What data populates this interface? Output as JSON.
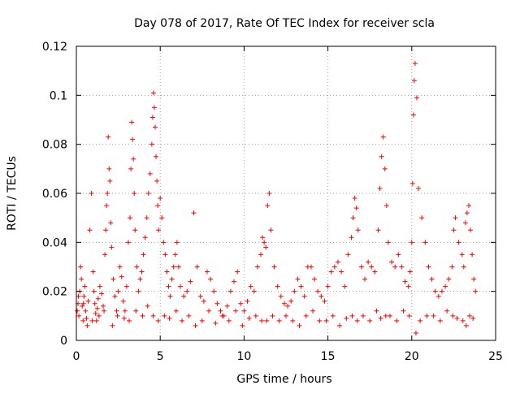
{
  "chart_data": {
    "type": "scatter",
    "title": "Day 078 of 2017, Rate Of TEC Index for receiver scla",
    "xlabel": "GPS time / hours",
    "ylabel": "ROTI / TECUs",
    "xlim": [
      0,
      25
    ],
    "ylim": [
      0,
      0.12
    ],
    "xticks": [
      0,
      5,
      10,
      15,
      20,
      25
    ],
    "xtick_labels": [
      "0",
      "5",
      "10",
      "15",
      "20",
      "25"
    ],
    "yticks": [
      0,
      0.02,
      0.04,
      0.06,
      0.08,
      0.1,
      0.12
    ],
    "ytick_labels": [
      "0",
      "0.02",
      "0.04",
      "0.06",
      "0.08",
      "0.1",
      "0.12"
    ],
    "grid": true,
    "marker": "plus",
    "series": [
      {
        "name": "ROTI",
        "color": "#ff0000",
        "x": [
          0.05,
          0.1,
          0.15,
          0.2,
          0.25,
          0.3,
          0.35,
          0.4,
          0.45,
          0.5,
          0.55,
          0.6,
          0.7,
          0.8,
          0.9,
          1.0,
          1.05,
          1.1,
          1.15,
          1.2,
          1.25,
          1.3,
          1.4,
          1.5,
          1.6,
          1.7,
          1.75,
          1.8,
          1.85,
          1.9,
          1.95,
          2.0,
          2.05,
          2.1,
          2.2,
          2.3,
          2.4,
          2.5,
          2.6,
          2.7,
          2.8,
          2.9,
          3.0,
          3.1,
          3.2,
          3.25,
          3.3,
          3.35,
          3.4,
          3.45,
          3.5,
          3.6,
          3.7,
          3.8,
          3.9,
          4.0,
          4.1,
          4.2,
          4.3,
          4.4,
          4.5,
          4.55,
          4.6,
          4.65,
          4.7,
          4.75,
          4.8,
          4.85,
          4.9,
          5.0,
          5.1,
          5.2,
          5.3,
          5.4,
          5.5,
          5.6,
          5.7,
          5.8,
          5.9,
          6.0,
          6.1,
          6.2,
          6.4,
          6.6,
          6.8,
          7.0,
          7.2,
          7.4,
          7.6,
          7.8,
          8.0,
          8.2,
          8.4,
          8.6,
          8.8,
          9.0,
          9.2,
          9.4,
          9.6,
          9.8,
          10.0,
          10.2,
          10.4,
          10.6,
          10.8,
          11.0,
          11.1,
          11.2,
          11.3,
          11.4,
          11.5,
          11.6,
          11.8,
          12.0,
          12.2,
          12.4,
          12.6,
          12.8,
          13.0,
          13.2,
          13.4,
          13.6,
          13.8,
          14.0,
          14.2,
          14.4,
          14.6,
          14.8,
          15.0,
          15.2,
          15.4,
          15.6,
          15.8,
          16.0,
          16.2,
          16.4,
          16.5,
          16.6,
          16.7,
          16.8,
          17.0,
          17.2,
          17.4,
          17.6,
          17.8,
          18.0,
          18.1,
          18.2,
          18.3,
          18.4,
          18.5,
          18.6,
          18.8,
          19.0,
          19.2,
          19.4,
          19.6,
          19.8,
          19.9,
          20.0,
          20.05,
          20.1,
          20.15,
          20.2,
          20.3,
          20.4,
          20.6,
          20.8,
          21.0,
          21.2,
          21.4,
          21.6,
          21.8,
          22.0,
          22.2,
          22.4,
          22.5,
          22.6,
          22.8,
          23.0,
          23.1,
          23.2,
          23.3,
          23.4,
          23.5,
          23.6,
          23.7,
          23.8,
          0.12,
          0.42,
          0.65,
          0.95,
          1.35,
          1.65,
          2.15,
          2.45,
          2.85,
          3.15,
          3.55,
          3.95,
          4.25,
          4.58,
          4.88,
          5.25,
          5.55,
          5.95,
          6.3,
          6.7,
          7.1,
          7.5,
          7.9,
          8.3,
          8.7,
          9.1,
          9.5,
          9.9,
          10.3,
          10.7,
          11.05,
          11.35,
          11.7,
          12.1,
          12.5,
          12.9,
          13.3,
          13.7,
          14.1,
          14.5,
          14.9,
          15.3,
          15.7,
          16.1,
          16.45,
          16.75,
          17.1,
          17.5,
          17.9,
          18.15,
          18.45,
          18.7,
          19.1,
          19.5,
          19.85,
          20.25,
          20.5,
          20.9,
          21.3,
          21.7,
          22.1,
          22.45,
          22.7,
          23.05,
          23.25,
          23.45,
          23.65
        ],
        "y": [
          0.012,
          0.015,
          0.01,
          0.02,
          0.03,
          0.025,
          0.014,
          0.008,
          0.018,
          0.022,
          0.012,
          0.009,
          0.016,
          0.045,
          0.06,
          0.028,
          0.02,
          0.015,
          0.011,
          0.008,
          0.013,
          0.017,
          0.022,
          0.019,
          0.014,
          0.035,
          0.045,
          0.055,
          0.06,
          0.083,
          0.07,
          0.065,
          0.048,
          0.038,
          0.025,
          0.018,
          0.012,
          0.02,
          0.03,
          0.026,
          0.016,
          0.012,
          0.022,
          0.04,
          0.05,
          0.07,
          0.089,
          0.082,
          0.074,
          0.06,
          0.045,
          0.03,
          0.02,
          0.025,
          0.028,
          0.035,
          0.042,
          0.05,
          0.06,
          0.068,
          0.08,
          0.091,
          0.101,
          0.095,
          0.087,
          0.075,
          0.065,
          0.055,
          0.045,
          0.058,
          0.05,
          0.04,
          0.035,
          0.028,
          0.022,
          0.018,
          0.025,
          0.03,
          0.035,
          0.04,
          0.03,
          0.022,
          0.018,
          0.02,
          0.024,
          0.052,
          0.03,
          0.018,
          0.016,
          0.028,
          0.025,
          0.02,
          0.015,
          0.012,
          0.01,
          0.014,
          0.02,
          0.024,
          0.028,
          0.015,
          0.012,
          0.016,
          0.022,
          0.02,
          0.03,
          0.035,
          0.042,
          0.04,
          0.038,
          0.055,
          0.06,
          0.045,
          0.03,
          0.022,
          0.018,
          0.015,
          0.014,
          0.016,
          0.02,
          0.025,
          0.022,
          0.018,
          0.03,
          0.03,
          0.025,
          0.02,
          0.018,
          0.016,
          0.022,
          0.028,
          0.03,
          0.032,
          0.028,
          0.022,
          0.035,
          0.042,
          0.05,
          0.058,
          0.054,
          0.045,
          0.03,
          0.025,
          0.032,
          0.03,
          0.028,
          0.045,
          0.062,
          0.075,
          0.083,
          0.07,
          0.055,
          0.04,
          0.032,
          0.03,
          0.035,
          0.03,
          0.024,
          0.022,
          0.028,
          0.04,
          0.064,
          0.092,
          0.106,
          0.113,
          0.099,
          0.062,
          0.05,
          0.04,
          0.03,
          0.025,
          0.02,
          0.018,
          0.02,
          0.022,
          0.025,
          0.03,
          0.045,
          0.05,
          0.04,
          0.035,
          0.03,
          0.048,
          0.052,
          0.055,
          0.045,
          0.035,
          0.025,
          0.02,
          0.018,
          0.015,
          0.006,
          0.008,
          0.01,
          0.012,
          0.006,
          0.01,
          0.009,
          0.008,
          0.012,
          0.01,
          0.014,
          0.01,
          0.008,
          0.01,
          0.009,
          0.012,
          0.008,
          0.01,
          0.006,
          0.008,
          0.012,
          0.007,
          0.01,
          0.008,
          0.012,
          0.006,
          0.009,
          0.01,
          0.008,
          0.008,
          0.01,
          0.008,
          0.01,
          0.008,
          0.006,
          0.01,
          0.012,
          0.008,
          0.008,
          0.01,
          0.006,
          0.009,
          0.01,
          0.008,
          0.01,
          0.008,
          0.012,
          0.009,
          0.01,
          0.01,
          0.008,
          0.012,
          0.01,
          0.003,
          0.008,
          0.01,
          0.01,
          0.008,
          0.012,
          0.01,
          0.009,
          0.008,
          0.006,
          0.01,
          0.009
        ]
      }
    ]
  }
}
